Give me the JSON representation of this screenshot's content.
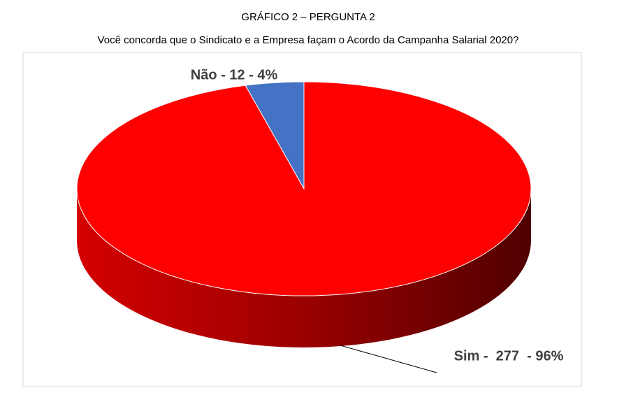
{
  "chart_data": {
    "type": "pie",
    "title": "GRÁFICO 2 – PERGUNTA 2",
    "subtitle": "Você concorda que o Sindicato e a Empresa façam o Acordo da Campanha Salarial 2020?",
    "values": [
      12,
      277
    ],
    "value_labels": [
      "Não - 12 - 4%",
      "Sim -  277  - 96%"
    ],
    "colors": [
      "#4472c4",
      "#ff0000"
    ]
  }
}
